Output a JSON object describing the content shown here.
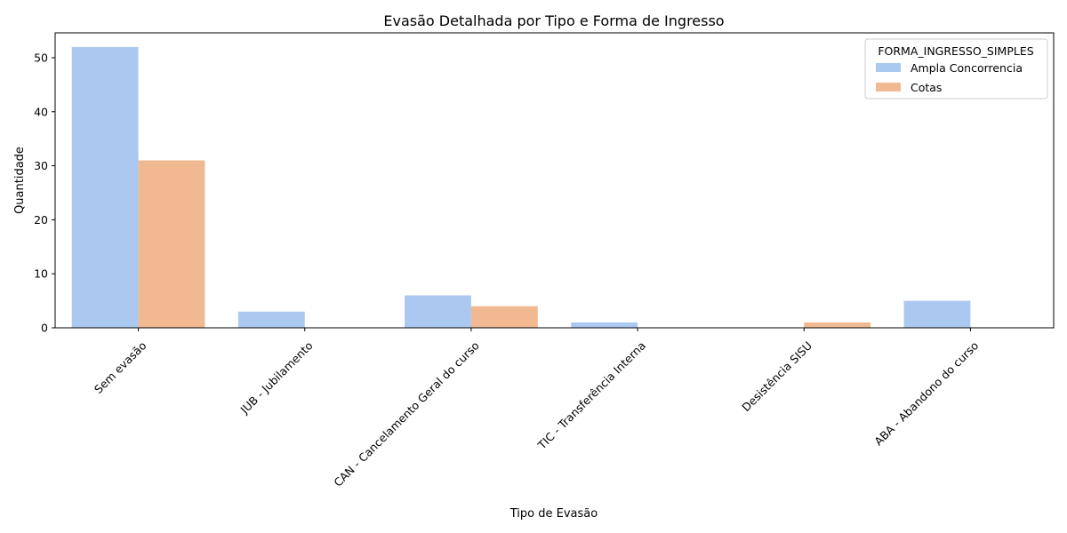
{
  "chart_data": {
    "type": "bar",
    "title": "Evasão Detalhada por Tipo e Forma de Ingresso",
    "xlabel": "Tipo de Evasão",
    "ylabel": "Quantidade",
    "categories": [
      "Sem evasão",
      "JUB - Jubilamento",
      "CAN - Cancelamento Geral do curso",
      "TIC - Transferência Interna",
      "Desistência SISU",
      "ABA - Abandono do curso"
    ],
    "series": [
      {
        "name": "Ampla Concorrencia",
        "color": "#abc9f0",
        "values": [
          52,
          3,
          6,
          1,
          0,
          5
        ]
      },
      {
        "name": "Cotas",
        "color": "#f1b991",
        "values": [
          31,
          0,
          4,
          0,
          1,
          0
        ]
      }
    ],
    "ylim": [
      0,
      54.6
    ],
    "yticks": [
      0,
      10,
      20,
      30,
      40,
      50
    ],
    "grid": false,
    "legend": {
      "title": "FORMA_INGRESSO_SIMPLES",
      "position": "top-right"
    }
  }
}
